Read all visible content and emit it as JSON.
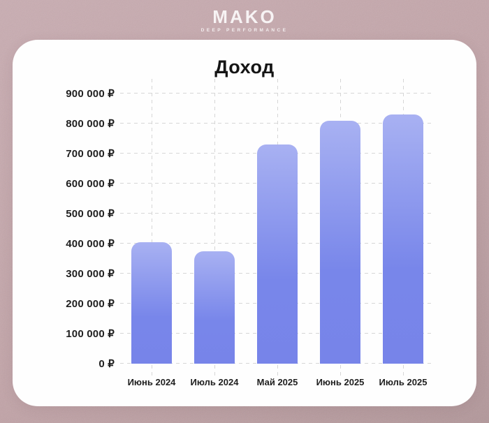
{
  "header": {
    "logo": "MAKO",
    "logo_subtitle": "DEEP PERFORMANCE"
  },
  "chart_data": {
    "type": "bar",
    "title": "Доход",
    "categories": [
      "Июнь 2024",
      "Июль 2024",
      "Май 2025",
      "Июнь 2025",
      "Июль 2025"
    ],
    "values": [
      405000,
      375000,
      730000,
      810000,
      830000
    ],
    "xlabel": "",
    "ylabel": "",
    "ylim": [
      0,
      900000
    ],
    "y_tick_step": 100000,
    "y_ticks": [
      {
        "value": 0,
        "label": "0 ₽"
      },
      {
        "value": 100000,
        "label": "100 000 ₽"
      },
      {
        "value": 200000,
        "label": "200 000 ₽"
      },
      {
        "value": 300000,
        "label": "300 000 ₽"
      },
      {
        "value": 400000,
        "label": "400 000 ₽"
      },
      {
        "value": 500000,
        "label": "500 000 ₽"
      },
      {
        "value": 600000,
        "label": "600 000 ₽"
      },
      {
        "value": 700000,
        "label": "700 000 ₽"
      },
      {
        "value": 800000,
        "label": "800 000 ₽"
      },
      {
        "value": 900000,
        "label": "900 000 ₽"
      }
    ],
    "currency_symbol": "₽",
    "grid": "dashed",
    "legend": "none",
    "colors": {
      "bar_gradient_top": "#a8b1f2",
      "bar_gradient_mid": "#7886ea",
      "bar_gradient_bottom": "#7784e9",
      "gridline": "#d6d6d6",
      "axis_text": "#1f1f1f",
      "title_text": "#151515",
      "card_background": "#fefefe",
      "page_background_top": "#c9adb2",
      "page_background_bottom": "#b2979a",
      "logo_text": "#f7f3f4"
    }
  }
}
